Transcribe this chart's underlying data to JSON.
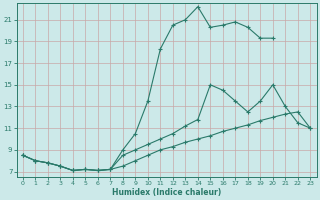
{
  "xlabel": "Humidex (Indice chaleur)",
  "background_color": "#cce9e9",
  "grid_color": "#b0d4d4",
  "line_color": "#2a7a6a",
  "xlim": [
    -0.5,
    23.5
  ],
  "ylim": [
    6.5,
    22.5
  ],
  "yticks": [
    7,
    9,
    11,
    13,
    15,
    17,
    19,
    21
  ],
  "xticks": [
    0,
    1,
    2,
    3,
    4,
    5,
    6,
    7,
    8,
    9,
    10,
    11,
    12,
    13,
    14,
    15,
    16,
    17,
    18,
    19,
    20,
    21,
    22,
    23
  ],
  "line1_x": [
    0,
    1,
    2,
    3,
    4,
    5,
    6,
    7,
    8,
    9,
    10,
    11,
    12,
    13,
    14,
    15,
    16,
    17,
    18,
    19,
    20
  ],
  "line1_y": [
    8.5,
    8.0,
    7.8,
    7.5,
    7.1,
    7.2,
    7.1,
    7.2,
    9.0,
    10.5,
    13.5,
    18.3,
    20.5,
    21.0,
    22.2,
    20.3,
    20.5,
    20.8,
    20.3,
    19.3,
    19.3
  ],
  "line2_x": [
    0,
    1,
    2,
    3,
    4,
    5,
    6,
    7,
    8,
    9,
    10,
    11,
    12,
    13,
    14,
    15,
    16,
    17,
    18,
    19,
    20,
    21,
    22,
    23
  ],
  "line2_y": [
    8.5,
    8.0,
    7.8,
    7.5,
    7.1,
    7.2,
    7.1,
    7.2,
    8.5,
    9.0,
    9.5,
    10.0,
    10.5,
    11.2,
    11.8,
    15.0,
    14.5,
    13.5,
    12.5,
    13.5,
    15.0,
    13.0,
    11.5,
    11.0
  ],
  "line3_x": [
    0,
    1,
    2,
    3,
    4,
    5,
    6,
    7,
    8,
    9,
    10,
    11,
    12,
    13,
    14,
    15,
    16,
    17,
    18,
    19,
    20,
    21,
    22,
    23
  ],
  "line3_y": [
    8.5,
    8.0,
    7.8,
    7.5,
    7.1,
    7.2,
    7.1,
    7.2,
    7.5,
    8.0,
    8.5,
    9.0,
    9.3,
    9.7,
    10.0,
    10.3,
    10.7,
    11.0,
    11.3,
    11.7,
    12.0,
    12.3,
    12.5,
    11.0
  ]
}
